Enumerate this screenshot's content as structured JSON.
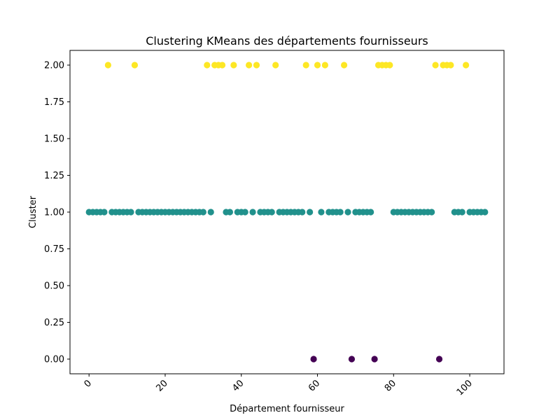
{
  "chart_data": {
    "type": "scatter",
    "title": "Clustering KMeans des départements fournisseurs",
    "xlabel": "Département fournisseur",
    "ylabel": "Cluster",
    "xlim": [
      -5,
      109
    ],
    "ylim": [
      -0.1,
      2.1
    ],
    "xticks": [
      0,
      20,
      40,
      60,
      80,
      100
    ],
    "xtick_labels": [
      "0",
      "20",
      "40",
      "60",
      "80",
      "100"
    ],
    "yticks": [
      0,
      0.25,
      0.5,
      0.75,
      1.0,
      1.25,
      1.5,
      1.75,
      2.0
    ],
    "ytick_labels": [
      "0.00",
      "0.25",
      "0.50",
      "0.75",
      "1.00",
      "1.25",
      "1.50",
      "1.75",
      "2.00"
    ],
    "grid": false,
    "cluster_colors": {
      "0": "#440154",
      "1": "#21918c",
      "2": "#fde725"
    },
    "x": [
      0,
      1,
      2,
      3,
      4,
      5,
      6,
      7,
      8,
      9,
      10,
      11,
      12,
      13,
      14,
      15,
      16,
      17,
      18,
      19,
      20,
      21,
      22,
      23,
      24,
      25,
      26,
      27,
      28,
      29,
      30,
      31,
      32,
      33,
      34,
      35,
      36,
      37,
      38,
      39,
      40,
      41,
      42,
      43,
      44,
      45,
      46,
      47,
      48,
      49,
      50,
      51,
      52,
      53,
      54,
      55,
      56,
      57,
      58,
      59,
      60,
      61,
      62,
      63,
      64,
      65,
      66,
      67,
      68,
      69,
      70,
      71,
      72,
      73,
      74,
      75,
      76,
      77,
      78,
      79,
      80,
      81,
      82,
      83,
      84,
      85,
      86,
      87,
      88,
      89,
      90,
      91,
      92,
      93,
      94,
      95,
      96,
      97,
      98,
      99,
      100,
      101,
      102,
      103,
      104
    ],
    "y": [
      1,
      1,
      1,
      1,
      1,
      2,
      1,
      1,
      1,
      1,
      1,
      1,
      2,
      1,
      1,
      1,
      1,
      1,
      1,
      1,
      1,
      1,
      1,
      1,
      1,
      1,
      1,
      1,
      1,
      1,
      1,
      2,
      1,
      2,
      2,
      2,
      1,
      1,
      2,
      1,
      1,
      1,
      2,
      1,
      2,
      1,
      1,
      1,
      1,
      2,
      1,
      1,
      1,
      1,
      1,
      1,
      1,
      2,
      1,
      0,
      2,
      1,
      2,
      1,
      1,
      1,
      1,
      2,
      1,
      0,
      1,
      1,
      1,
      1,
      1,
      0,
      2,
      2,
      2,
      2,
      1,
      1,
      1,
      1,
      1,
      1,
      1,
      1,
      1,
      1,
      1,
      2,
      0,
      2,
      2,
      2,
      1,
      1,
      1,
      2,
      1,
      1,
      1,
      1,
      1
    ]
  }
}
